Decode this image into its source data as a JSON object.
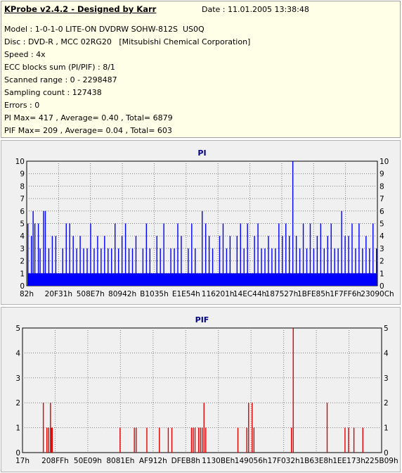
{
  "header": {
    "title": "KProbe v2.4.2 - Designed by Karr",
    "date": "Date : 11.01.2005 13:38:48",
    "lines": [
      "Model : 1-0-1-0 LITE-ON DVDRW SOHW-812S  US0Q",
      "Disc : DVD-R , MCC 02RG20   [Mitsubishi Chemical Corporation]",
      "Speed : 4x",
      "ECC blocks sum (PI/PIF) : 8/1",
      "Scanned range : 0 - 2298487",
      "Sampling count : 127438",
      "Errors : 0",
      "PI Max= 417 , Average= 0.40 , Total= 6879",
      "PIF Max= 209 , Average= 0.04 , Total= 603"
    ]
  },
  "colors": {
    "pi": "#0000ff",
    "pif": "#e00000",
    "title": "#00008c",
    "plot_bg": "#f0f0f0",
    "grid": "#808080"
  },
  "chart_data": [
    {
      "type": "bar",
      "title": "PI",
      "ylim": [
        0,
        10
      ],
      "yticks": [
        "0",
        "1",
        "2",
        "3",
        "4",
        "5",
        "6",
        "7",
        "8",
        "9",
        "10"
      ],
      "xticks": [
        "82h",
        "20F31h",
        "508E7h",
        "80942h",
        "B1035h",
        "E1E54h",
        "116201h",
        "14EC44h",
        "187527h",
        "1BFE85h",
        "1F7FF6h",
        "23090Ch"
      ],
      "grid": true,
      "baseline_level": 1,
      "spikes": [
        [
          0.0,
          5
        ],
        [
          0.01,
          4
        ],
        [
          0.015,
          6
        ],
        [
          0.02,
          5
        ],
        [
          0.03,
          5
        ],
        [
          0.035,
          3
        ],
        [
          0.045,
          6
        ],
        [
          0.05,
          6
        ],
        [
          0.06,
          3
        ],
        [
          0.07,
          4
        ],
        [
          0.08,
          4
        ],
        [
          0.1,
          3
        ],
        [
          0.11,
          5
        ],
        [
          0.12,
          5
        ],
        [
          0.13,
          4
        ],
        [
          0.14,
          3
        ],
        [
          0.15,
          4
        ],
        [
          0.16,
          3
        ],
        [
          0.17,
          3
        ],
        [
          0.18,
          5
        ],
        [
          0.19,
          3
        ],
        [
          0.2,
          4
        ],
        [
          0.21,
          3
        ],
        [
          0.22,
          4
        ],
        [
          0.23,
          3
        ],
        [
          0.24,
          3
        ],
        [
          0.25,
          5
        ],
        [
          0.26,
          3
        ],
        [
          0.27,
          4
        ],
        [
          0.28,
          5
        ],
        [
          0.29,
          3
        ],
        [
          0.3,
          3
        ],
        [
          0.31,
          4
        ],
        [
          0.33,
          3
        ],
        [
          0.34,
          5
        ],
        [
          0.35,
          3
        ],
        [
          0.37,
          4
        ],
        [
          0.38,
          3
        ],
        [
          0.39,
          5
        ],
        [
          0.41,
          3
        ],
        [
          0.42,
          3
        ],
        [
          0.43,
          5
        ],
        [
          0.44,
          4
        ],
        [
          0.46,
          3
        ],
        [
          0.47,
          5
        ],
        [
          0.48,
          3
        ],
        [
          0.5,
          6
        ],
        [
          0.51,
          5
        ],
        [
          0.52,
          4
        ],
        [
          0.53,
          3
        ],
        [
          0.55,
          4
        ],
        [
          0.56,
          5
        ],
        [
          0.57,
          3
        ],
        [
          0.58,
          4
        ],
        [
          0.6,
          4
        ],
        [
          0.61,
          5
        ],
        [
          0.62,
          3
        ],
        [
          0.63,
          5
        ],
        [
          0.65,
          4
        ],
        [
          0.66,
          5
        ],
        [
          0.67,
          3
        ],
        [
          0.68,
          3
        ],
        [
          0.69,
          4
        ],
        [
          0.7,
          3
        ],
        [
          0.71,
          3
        ],
        [
          0.72,
          5
        ],
        [
          0.73,
          4
        ],
        [
          0.74,
          5
        ],
        [
          0.75,
          4
        ],
        [
          0.76,
          10
        ],
        [
          0.77,
          4
        ],
        [
          0.78,
          3
        ],
        [
          0.79,
          5
        ],
        [
          0.8,
          3
        ],
        [
          0.81,
          5
        ],
        [
          0.82,
          3
        ],
        [
          0.83,
          4
        ],
        [
          0.84,
          5
        ],
        [
          0.85,
          3
        ],
        [
          0.86,
          4
        ],
        [
          0.87,
          5
        ],
        [
          0.88,
          3
        ],
        [
          0.89,
          3
        ],
        [
          0.9,
          6
        ],
        [
          0.91,
          4
        ],
        [
          0.92,
          4
        ],
        [
          0.93,
          5
        ],
        [
          0.94,
          3
        ],
        [
          0.95,
          5
        ],
        [
          0.96,
          3
        ],
        [
          0.97,
          4
        ],
        [
          0.98,
          3
        ],
        [
          0.99,
          5
        ],
        [
          1.0,
          3
        ]
      ]
    },
    {
      "type": "bar",
      "title": "PIF",
      "ylim": [
        0,
        5
      ],
      "yticks": [
        "0",
        "1",
        "2",
        "3",
        "4",
        "5"
      ],
      "xticks": [
        "17h",
        "208FFh",
        "50E09h",
        "8081Eh",
        "AF912h",
        "DFEB8h",
        "1130BEh",
        "149056h",
        "17F032h",
        "1B63E8h",
        "1EE173h",
        "225B09h"
      ],
      "grid": true,
      "spikes": [
        [
          0.055,
          2
        ],
        [
          0.065,
          1
        ],
        [
          0.07,
          1
        ],
        [
          0.075,
          2
        ],
        [
          0.078,
          1
        ],
        [
          0.08,
          1
        ],
        [
          0.27,
          1
        ],
        [
          0.31,
          1
        ],
        [
          0.315,
          1
        ],
        [
          0.345,
          1
        ],
        [
          0.38,
          1
        ],
        [
          0.405,
          1
        ],
        [
          0.415,
          1
        ],
        [
          0.47,
          1
        ],
        [
          0.475,
          1
        ],
        [
          0.48,
          1
        ],
        [
          0.49,
          1
        ],
        [
          0.495,
          1
        ],
        [
          0.5,
          1
        ],
        [
          0.505,
          2
        ],
        [
          0.51,
          1
        ],
        [
          0.6,
          1
        ],
        [
          0.625,
          1
        ],
        [
          0.63,
          2
        ],
        [
          0.64,
          2
        ],
        [
          0.645,
          1
        ],
        [
          0.75,
          1
        ],
        [
          0.755,
          5
        ],
        [
          0.85,
          2
        ],
        [
          0.9,
          1
        ],
        [
          0.91,
          1
        ],
        [
          0.925,
          1
        ],
        [
          0.95,
          1
        ]
      ]
    }
  ]
}
